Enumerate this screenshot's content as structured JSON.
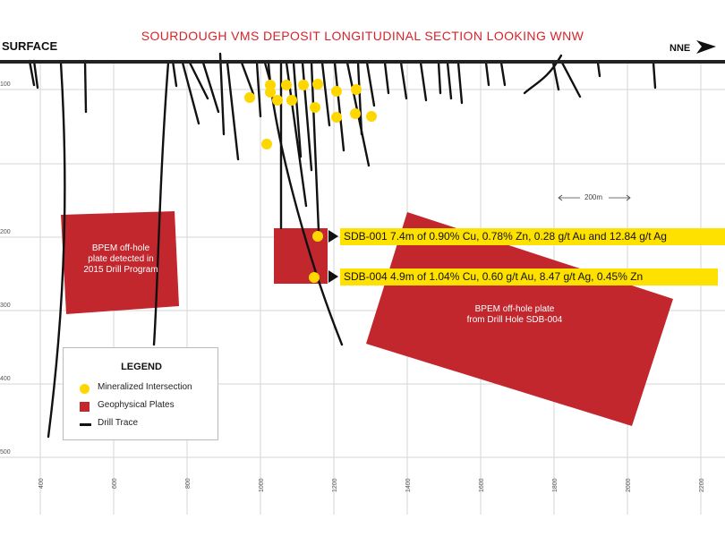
{
  "title": "SOURDOUGH VMS DEPOSIT LONGITUDINAL SECTION LOOKING WNW",
  "surface_label": "SURFACE",
  "direction_label": "NNE",
  "depth_labels": [
    "100",
    "200",
    "300",
    "400",
    "500"
  ],
  "x_ticks": [
    "400",
    "600",
    "800",
    "1000",
    "1200",
    "1400",
    "1600",
    "1800",
    "2000",
    "2200"
  ],
  "scale_bar_label": "200m",
  "plates": [
    {
      "label_lines": [
        "BPEM off-hole",
        "plate detected in",
        "2015 Drill Program"
      ]
    },
    {
      "label_lines": []
    },
    {
      "label_lines": [
        "BPEM off-hole plate",
        "from Drill Hole SDB-004"
      ]
    }
  ],
  "callouts": [
    {
      "text": "SDB-001 7.4m of 0.90% Cu, 0.78% Zn, 0.28 g/t Au and 12.84 g/t Ag"
    },
    {
      "text": "SDB-004 4.9m of 1.04% Cu, 0.60 g/t Au, 8.47 g/t Ag, 0.45% Zn"
    }
  ],
  "legend": {
    "title": "LEGEND",
    "items": [
      {
        "label": "Mineralized Intersection",
        "symbol": "yellow-circle"
      },
      {
        "label": "Geophysical Plates",
        "symbol": "red-rectangle"
      },
      {
        "label": "Drill Trace",
        "symbol": "black-line"
      }
    ]
  },
  "colors": {
    "title": "#d8232a",
    "plate": "#c1272d",
    "intersection": "#ffd700",
    "callout": "#ffe100",
    "trace": "#111111"
  }
}
